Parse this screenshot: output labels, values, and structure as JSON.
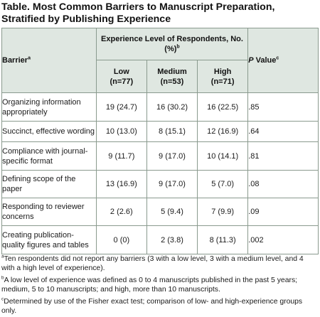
{
  "title": "Table. Most Common Barriers to Manuscript Preparation, Stratified by Publishing Experience",
  "header": {
    "barrier": "Barrier",
    "barrier_sup": "a",
    "experience_group": "Experience Level of Respondents, No. (%)",
    "experience_sup": "b",
    "low": "Low",
    "low_n": "(n=77)",
    "medium": "Medium",
    "medium_n": "(n=53)",
    "high": "High",
    "high_n": "(n=71)",
    "p_italic": "P",
    "p_rest": " Value",
    "p_sup": "c"
  },
  "rows": [
    {
      "barrier": "Organizing information appropriately",
      "low": "19 (24.7)",
      "medium": "16 (30.2)",
      "high": "16 (22.5)",
      "p": ".85"
    },
    {
      "barrier": "Succinct, effective wording",
      "low": "10 (13.0)",
      "medium": "8 (15.1)",
      "high": "12 (16.9)",
      "p": ".64"
    },
    {
      "barrier": "Compliance with journal-specific format",
      "low": "9 (11.7)",
      "medium": "9 (17.0)",
      "high": "10 (14.1)",
      "p": ".81"
    },
    {
      "barrier": "Defining scope of the paper",
      "low": "13 (16.9)",
      "medium": "9 (17.0)",
      "high": "5 (7.0)",
      "p": ".08"
    },
    {
      "barrier": "Responding to reviewer concerns",
      "low": "2 (2.6)",
      "medium": "5 (9.4)",
      "high": "7 (9.9)",
      "p": ".09"
    },
    {
      "barrier": "Creating publication-quality figures and tables",
      "low": "0 (0)",
      "medium": "2 (3.8)",
      "high": "8 (11.3)",
      "p": ".002"
    }
  ],
  "footnotes": [
    {
      "mark": "a",
      "text": "Ten respondents did not report any barriers (3 with a low level, 3 with a medium level, and 4 with a high level of experience)."
    },
    {
      "mark": "b",
      "text": "A low level of experience was defined as 0 to 4 manuscripts published in the past 5 years; medium, 5 to 10 manuscripts; and high, more than 10 manuscripts."
    },
    {
      "mark": "c",
      "text": "Determined by use of the Fisher exact test; comparison of low- and high-experience groups only."
    }
  ]
}
